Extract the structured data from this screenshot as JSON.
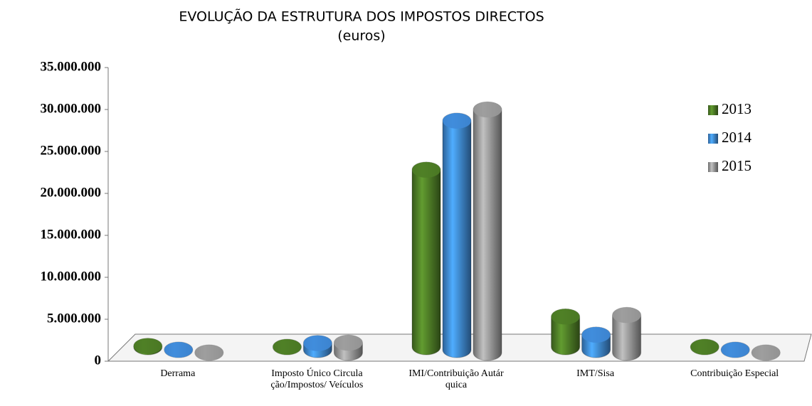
{
  "chart_data": {
    "type": "bar",
    "title": "EVOLUÇÃO DA ESTRUTURA DOS IMPOSTOS DIRECTOS",
    "subtitle": "(euros)",
    "categories": [
      "Derrama",
      "Imposto Único Circulação/Impostos/ Veículos",
      "IMI/Contribuição Autárquica",
      "IMT/Sisa",
      "Contribuição Especial"
    ],
    "series": [
      {
        "name": "2013",
        "color": "#4e7d26",
        "values": [
          3500000,
          2200000,
          24500000,
          7000000,
          0
        ]
      },
      {
        "name": "2014",
        "color": "#3f8ad8",
        "values": [
          1800000,
          3500000,
          30000000,
          4500000,
          0
        ]
      },
      {
        "name": "2015",
        "color": "#9a9a9a",
        "values": [
          1500000,
          3200000,
          31000000,
          6500000,
          0
        ]
      }
    ],
    "ylim": [
      0,
      35000000
    ],
    "yticks": [
      0,
      {
        "value": 5000000,
        "label": "5.000.000"
      },
      {
        "value": 10000000,
        "label": "10.000.000"
      },
      {
        "value": 15000000,
        "label": "15.000.000"
      },
      {
        "value": 20000000,
        "label": "20.000.000"
      },
      {
        "value": 25000000,
        "label": "25.000.000"
      },
      {
        "value": 30000000,
        "label": "30.000.000"
      },
      {
        "value": 35000000,
        "label": "35.000.000"
      }
    ],
    "legend": "right"
  }
}
